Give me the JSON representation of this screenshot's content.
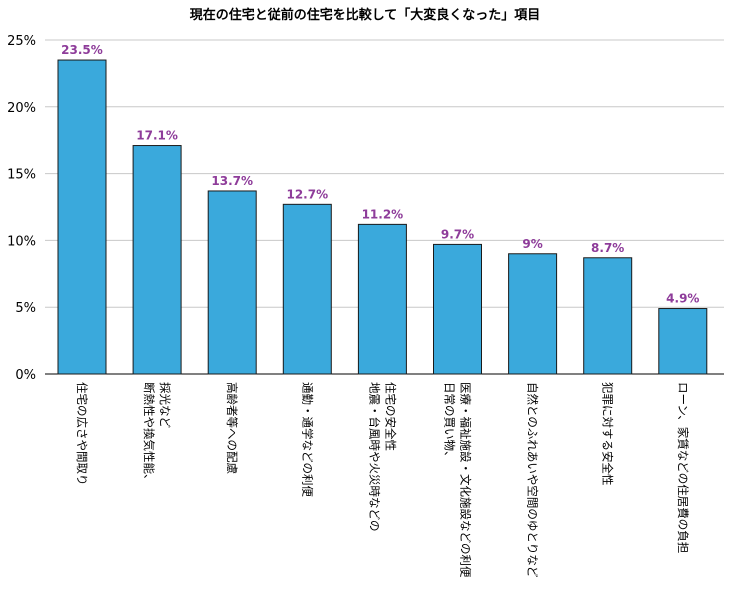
{
  "chart_data": {
    "type": "bar",
    "title": "現在の住宅と従前の住宅を比較して「大変良くなった」項目",
    "xlabel": "",
    "ylabel": "",
    "ylim": [
      0,
      25
    ],
    "y_ticks": [
      "0%",
      "5%",
      "10%",
      "15%",
      "20%",
      "25%"
    ],
    "grid": true,
    "categories": [
      [
        "住宅の広さや間取り"
      ],
      [
        "断熱性や換気性能、",
        "採光など"
      ],
      [
        "高齢者等への配慮"
      ],
      [
        "通勤・通学などの利便"
      ],
      [
        "地震・台風時や火災時などの",
        "住宅の安全性"
      ],
      [
        "日常の買い物、",
        "医療・福祉施設・文化施設などの利便"
      ],
      [
        "自然とのふれあいや空間のゆとりなど"
      ],
      [
        "犯罪に対する安全性"
      ],
      [
        "ローン、家賃などの住居費の負担"
      ]
    ],
    "values": [
      23.5,
      17.1,
      13.7,
      12.7,
      11.2,
      9.7,
      9.0,
      8.7,
      4.9
    ],
    "data_labels": [
      "23.5%",
      "17.1%",
      "13.7%",
      "12.7%",
      "11.2%",
      "9.7%",
      "9%",
      "8.7%",
      "4.9%"
    ],
    "bar_color": "#3aa9dc",
    "bar_stroke": "#1a1a1a",
    "label_color": "#8e3c9a"
  }
}
